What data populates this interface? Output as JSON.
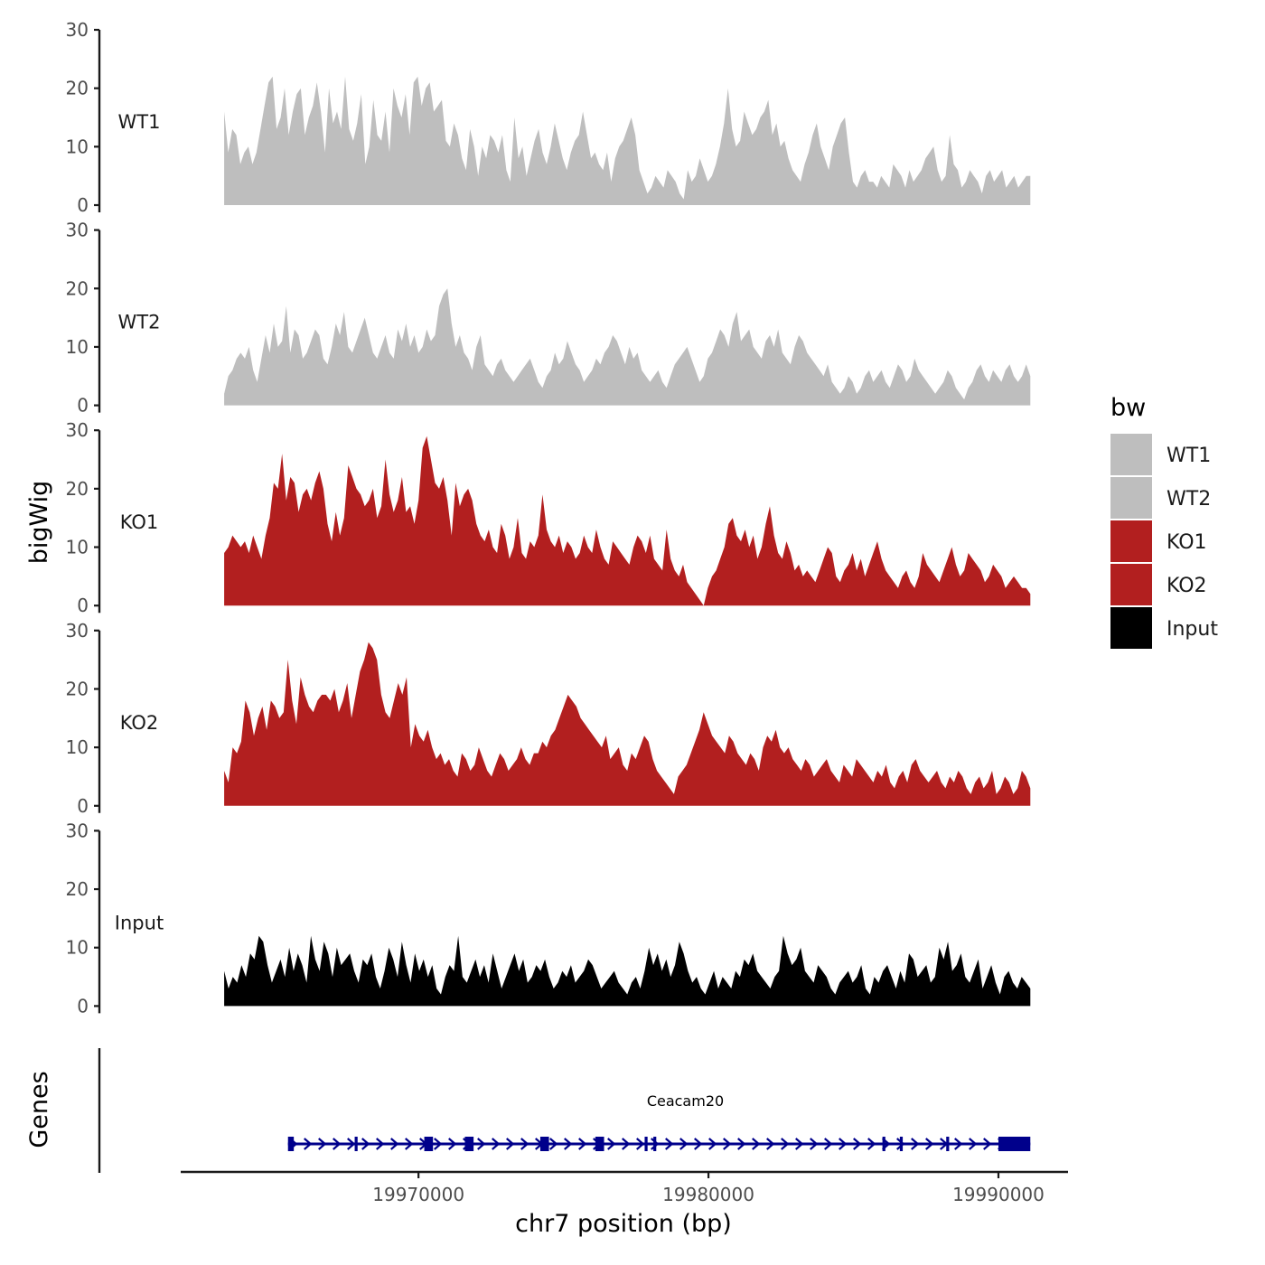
{
  "chart_data": {
    "type": "area",
    "ylabel": "bigWig",
    "xlabel": "chr7 position (bp)",
    "genes_label": "Genes",
    "xlim": [
      19961800,
      19992400
    ],
    "ylim": [
      0,
      30
    ],
    "x_range": [
      19963300,
      19991100
    ],
    "x_ticks": [
      19970000,
      19980000,
      19990000
    ],
    "x_tick_labels": [
      "19970000",
      "19980000",
      "19990000"
    ],
    "y_ticks": [
      0,
      10,
      20,
      30
    ],
    "y_tick_labels": [
      "0",
      "10",
      "20",
      "30"
    ],
    "series": [
      {
        "name": "WT1",
        "color": "#bebebe",
        "values": [
          16,
          9,
          13,
          12,
          7,
          9,
          10,
          7,
          9,
          13,
          17,
          21,
          22,
          13,
          15,
          20,
          12,
          16,
          19,
          20,
          12,
          15,
          17,
          21,
          16,
          9,
          20,
          14,
          16,
          13,
          22,
          13,
          11,
          14,
          19,
          7,
          10,
          18,
          12,
          11,
          16,
          9,
          20,
          17,
          15,
          19,
          12,
          21,
          22,
          17,
          20,
          21,
          16,
          17,
          18,
          11,
          10,
          14,
          12,
          8,
          6,
          13,
          10,
          5,
          10,
          8,
          12,
          11,
          9,
          12,
          6,
          4,
          15,
          8,
          10,
          5,
          8,
          11,
          13,
          9,
          7,
          10,
          14,
          11,
          8,
          6,
          9,
          11,
          12,
          16,
          12,
          8,
          9,
          7,
          6,
          9,
          4,
          8,
          10,
          11,
          13,
          15,
          12,
          6,
          4,
          2,
          3,
          5,
          4,
          3,
          6,
          5,
          4,
          2,
          1,
          6,
          4,
          5,
          8,
          6,
          4,
          5,
          7,
          10,
          14,
          20,
          13,
          10,
          11,
          16,
          14,
          12,
          13,
          15,
          16,
          18,
          12,
          14,
          10,
          11,
          8,
          6,
          5,
          4,
          7,
          9,
          12,
          14,
          10,
          8,
          6,
          10,
          12,
          14,
          15,
          9,
          4,
          3,
          5,
          6,
          4,
          4,
          3,
          5,
          4,
          3,
          7,
          6,
          5,
          3,
          6,
          4,
          5,
          6,
          8,
          9,
          10,
          6,
          4,
          5,
          12,
          7,
          6,
          3,
          4,
          6,
          5,
          4,
          2,
          5,
          6,
          4,
          5,
          6,
          3,
          4,
          5,
          3,
          4,
          5,
          5
        ]
      },
      {
        "name": "WT2",
        "color": "#bebebe",
        "values": [
          2,
          5,
          6,
          8,
          9,
          8,
          10,
          6,
          4,
          8,
          12,
          9,
          14,
          10,
          11,
          17,
          9,
          13,
          12,
          8,
          9,
          11,
          13,
          12,
          8,
          7,
          10,
          14,
          12,
          16,
          10,
          9,
          11,
          13,
          15,
          12,
          9,
          8,
          10,
          12,
          9,
          8,
          13,
          11,
          14,
          10,
          12,
          9,
          10,
          13,
          11,
          12,
          17,
          19,
          20,
          14,
          10,
          12,
          9,
          8,
          6,
          10,
          12,
          7,
          6,
          5,
          7,
          8,
          6,
          5,
          4,
          5,
          6,
          7,
          8,
          6,
          4,
          3,
          5,
          6,
          9,
          7,
          8,
          11,
          9,
          7,
          6,
          4,
          5,
          6,
          8,
          7,
          9,
          10,
          12,
          11,
          9,
          7,
          10,
          8,
          9,
          6,
          5,
          4,
          5,
          6,
          4,
          3,
          5,
          7,
          8,
          9,
          10,
          8,
          6,
          4,
          5,
          8,
          9,
          11,
          13,
          12,
          10,
          14,
          16,
          11,
          12,
          13,
          10,
          9,
          8,
          11,
          12,
          10,
          13,
          9,
          8,
          7,
          10,
          12,
          11,
          9,
          8,
          7,
          6,
          5,
          7,
          4,
          3,
          2,
          3,
          5,
          4,
          2,
          3,
          5,
          6,
          4,
          5,
          6,
          4,
          3,
          5,
          7,
          6,
          4,
          5,
          8,
          6,
          5,
          4,
          3,
          2,
          3,
          4,
          6,
          5,
          3,
          2,
          1,
          3,
          4,
          6,
          7,
          5,
          4,
          6,
          5,
          4,
          6,
          7,
          5,
          4,
          5,
          7,
          5
        ]
      },
      {
        "name": "KO1",
        "color": "#b21f1f",
        "values": [
          9,
          10,
          12,
          11,
          10,
          11,
          9,
          12,
          10,
          8,
          12,
          15,
          21,
          20,
          26,
          18,
          22,
          21,
          16,
          19,
          20,
          18,
          21,
          23,
          20,
          14,
          11,
          16,
          12,
          15,
          24,
          22,
          20,
          19,
          17,
          18,
          20,
          15,
          17,
          25,
          19,
          16,
          18,
          22,
          16,
          17,
          14,
          18,
          27,
          29,
          25,
          21,
          20,
          22,
          18,
          12,
          21,
          17,
          19,
          20,
          18,
          14,
          12,
          11,
          13,
          10,
          9,
          14,
          12,
          8,
          10,
          15,
          9,
          8,
          11,
          10,
          12,
          19,
          13,
          11,
          10,
          12,
          9,
          11,
          10,
          8,
          9,
          12,
          10,
          9,
          13,
          10,
          8,
          7,
          11,
          10,
          9,
          8,
          7,
          10,
          12,
          11,
          9,
          12,
          8,
          7,
          6,
          13,
          8,
          6,
          5,
          7,
          4,
          3,
          2,
          1,
          0,
          3,
          5,
          6,
          8,
          10,
          14,
          15,
          12,
          11,
          13,
          10,
          12,
          8,
          10,
          14,
          17,
          12,
          9,
          8,
          11,
          9,
          6,
          7,
          5,
          6,
          5,
          4,
          6,
          8,
          10,
          9,
          5,
          4,
          6,
          7,
          9,
          6,
          8,
          5,
          7,
          9,
          11,
          8,
          6,
          5,
          4,
          3,
          5,
          6,
          4,
          3,
          5,
          9,
          7,
          6,
          5,
          4,
          6,
          8,
          10,
          7,
          5,
          6,
          9,
          8,
          7,
          6,
          4,
          5,
          7,
          6,
          5,
          3,
          4,
          5,
          4,
          3,
          3,
          2
        ]
      },
      {
        "name": "KO2",
        "color": "#b21f1f",
        "values": [
          6,
          4,
          10,
          9,
          11,
          18,
          16,
          12,
          15,
          17,
          13,
          18,
          17,
          15,
          16,
          25,
          18,
          14,
          22,
          19,
          17,
          16,
          18,
          19,
          19,
          18,
          20,
          16,
          18,
          21,
          15,
          19,
          23,
          25,
          28,
          27,
          25,
          19,
          16,
          15,
          18,
          21,
          19,
          22,
          10,
          14,
          12,
          11,
          13,
          10,
          8,
          9,
          7,
          8,
          6,
          5,
          9,
          8,
          6,
          7,
          10,
          8,
          6,
          5,
          7,
          9,
          8,
          6,
          7,
          8,
          10,
          8,
          7,
          9,
          9,
          11,
          10,
          12,
          13,
          15,
          17,
          19,
          18,
          17,
          15,
          14,
          13,
          12,
          11,
          10,
          12,
          8,
          9,
          10,
          7,
          6,
          9,
          8,
          10,
          12,
          11,
          8,
          6,
          5,
          4,
          3,
          2,
          5,
          6,
          7,
          9,
          11,
          13,
          16,
          14,
          12,
          11,
          10,
          9,
          12,
          11,
          9,
          8,
          7,
          9,
          8,
          6,
          10,
          12,
          11,
          13,
          10,
          9,
          10,
          8,
          7,
          6,
          8,
          7,
          5,
          6,
          7,
          8,
          6,
          5,
          4,
          7,
          6,
          5,
          8,
          7,
          6,
          5,
          4,
          6,
          5,
          7,
          4,
          3,
          5,
          6,
          4,
          7,
          8,
          6,
          5,
          4,
          5,
          6,
          4,
          3,
          5,
          4,
          6,
          5,
          3,
          2,
          4,
          5,
          3,
          4,
          6,
          2,
          3,
          5,
          4,
          2,
          3,
          6,
          5,
          3
        ]
      },
      {
        "name": "Input",
        "color": "#000000",
        "values": [
          6,
          3,
          5,
          4,
          7,
          5,
          9,
          8,
          12,
          11,
          7,
          4,
          6,
          8,
          5,
          10,
          6,
          9,
          7,
          4,
          12,
          8,
          6,
          11,
          9,
          5,
          10,
          7,
          8,
          9,
          6,
          4,
          8,
          7,
          9,
          5,
          3,
          6,
          10,
          8,
          5,
          11,
          7,
          4,
          9,
          6,
          8,
          5,
          7,
          3,
          2,
          5,
          7,
          6,
          12,
          5,
          4,
          6,
          8,
          5,
          7,
          4,
          9,
          6,
          3,
          5,
          7,
          9,
          6,
          8,
          4,
          5,
          7,
          6,
          8,
          5,
          3,
          4,
          6,
          5,
          7,
          4,
          5,
          6,
          8,
          7,
          5,
          3,
          4,
          5,
          6,
          4,
          3,
          2,
          4,
          5,
          3,
          6,
          10,
          7,
          9,
          6,
          8,
          5,
          7,
          11,
          9,
          6,
          4,
          5,
          3,
          2,
          4,
          6,
          3,
          5,
          4,
          3,
          6,
          5,
          8,
          7,
          9,
          6,
          5,
          4,
          3,
          5,
          6,
          12,
          9,
          7,
          8,
          10,
          6,
          5,
          4,
          7,
          6,
          5,
          3,
          2,
          4,
          5,
          6,
          4,
          5,
          7,
          3,
          2,
          5,
          4,
          6,
          7,
          5,
          3,
          6,
          4,
          9,
          8,
          5,
          6,
          7,
          4,
          5,
          10,
          8,
          11,
          6,
          7,
          9,
          5,
          4,
          6,
          8,
          3,
          5,
          7,
          4,
          2,
          5,
          6,
          4,
          3,
          5,
          4,
          3
        ]
      }
    ],
    "genes": [
      {
        "name": "Ceacam20",
        "start": 19965500,
        "end": 19991100,
        "strand": "+",
        "exons": [
          [
            19965500,
            19965700
          ],
          [
            19967800,
            19967900
          ],
          [
            19970200,
            19970500
          ],
          [
            19971600,
            19971900
          ],
          [
            19974200,
            19974500
          ],
          [
            19976100,
            19976400
          ],
          [
            19977800,
            19977900
          ],
          [
            19978100,
            19978200
          ],
          [
            19986000,
            19986100
          ],
          [
            19986600,
            19986700
          ],
          [
            19988200,
            19988300
          ],
          [
            19990000,
            19991100
          ]
        ]
      }
    ],
    "legend": {
      "title": "bw",
      "position": "right",
      "items": [
        {
          "label": "WT1",
          "color": "#bebebe"
        },
        {
          "label": "WT2",
          "color": "#bebebe"
        },
        {
          "label": "KO1",
          "color": "#b21f1f"
        },
        {
          "label": "KO2",
          "color": "#b21f1f"
        },
        {
          "label": "Input",
          "color": "#000000"
        }
      ]
    },
    "gene_color": "#00008b"
  }
}
